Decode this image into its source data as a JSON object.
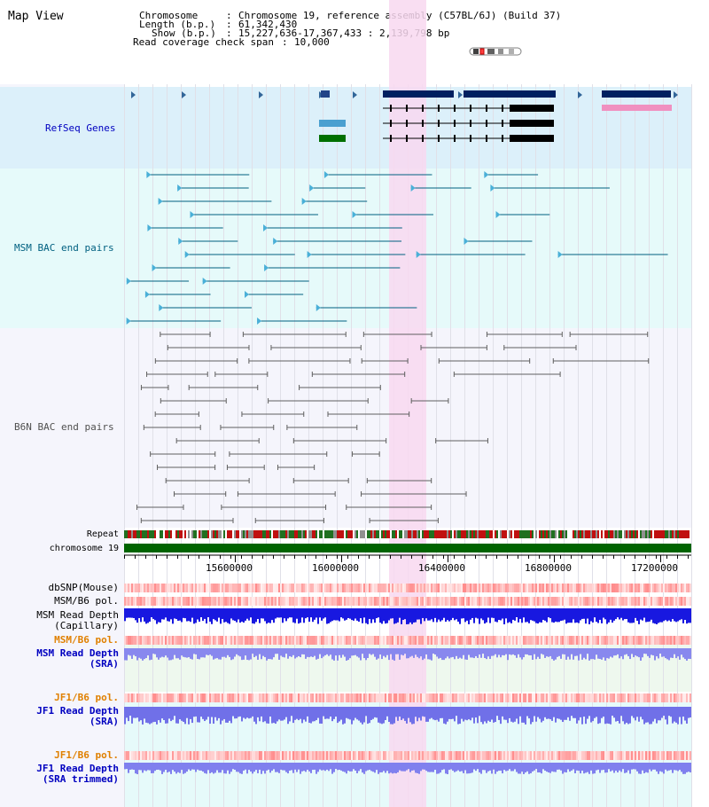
{
  "view_title": "Map View",
  "header": {
    "chromosome_key": "Chromosome",
    "chromosome_value": "Chromosome 19, reference assembly (C57BL/6J) (Build 37)",
    "length_key": "Length (b.p.)",
    "length_value": "61,342,430",
    "show_key": "Show (b.p.)",
    "show_value": "15,227,636-17,367,433 : 2,139,798 bp",
    "coverage_key": "Read coverage check span",
    "coverage_value": "10,000"
  },
  "tracks": {
    "refseq": "RefSeq Genes",
    "msm_bac": "MSM BAC end pairs",
    "b6n_bac": "B6N BAC end pairs",
    "repeat": "Repeat",
    "chromosome": "chromosome 19",
    "dbsnp": "dbSNP(Mouse)",
    "msm_b6_pol_1": "MSM/B6 pol.",
    "msm_read_depth_cap_1": "MSM Read Depth",
    "msm_read_depth_cap_2": "(Capillary)",
    "msm_b6_pol_2": "MSM/B6 pol.",
    "msm_read_depth_sra_1": "MSM Read Depth",
    "msm_read_depth_sra_2": "(SRA)",
    "jf1_b6_pol_1": "JF1/B6 pol.",
    "jf1_read_depth_sra_1": "JF1 Read Depth",
    "jf1_read_depth_sra_2": "(SRA)",
    "jf1_b6_pol_2": "JF1/B6 pol.",
    "jf1_read_depth_trim_1": "JF1 Read Depth",
    "jf1_read_depth_trim_2": "(SRA trimmed)"
  },
  "axis": {
    "ticks": [
      "15600000",
      "16000000",
      "16400000",
      "16800000",
      "17200000"
    ]
  },
  "colors": {
    "refseq_bg": "#dcf0fa",
    "msm_bg": "#e6fafa",
    "b6n_bg": "#f5f5fc",
    "highlight": "#f8d8f0",
    "chromosome": "#006400",
    "msm_feature": "#006080",
    "b6n_feature": "#606060",
    "label_blue": "#0000c0",
    "label_teal": "#006080",
    "label_gray": "#505050",
    "label_orange": "#e08000"
  }
}
